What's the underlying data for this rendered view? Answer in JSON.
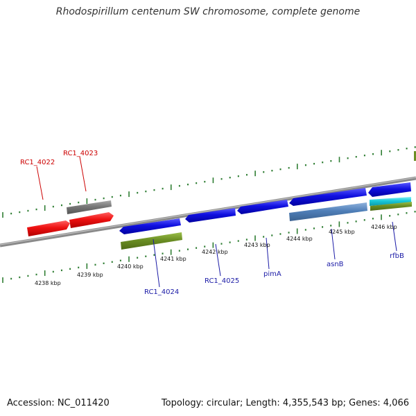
{
  "title": "Rhodospirillum centenum SW chromosome, complete genome",
  "footer": {
    "accession": "Accession: NC_011420",
    "stats": "Topology: circular; Length: 4,355,543 bp; Genes: 4,066"
  },
  "tick_labels": [
    "4238 kbp",
    "4239 kbp",
    "4240 kbp",
    "4241 kbp",
    "4242 kbp",
    "4243 kbp",
    "4244 kbp",
    "4245 kbp",
    "4246 kbp"
  ],
  "gene_labels": [
    "RC1_4022",
    "RC1_4023",
    "RC1_4024",
    "RC1_4025",
    "pimA",
    "asnB",
    "rfbB"
  ],
  "colors": {
    "forward_gene": "#ee1111",
    "reverse_gene": "#1010e0",
    "other_gene": "#777777",
    "rna_like": "#6b8e23",
    "steelblue": "#4f7fb8",
    "cyan": "#18c8d8",
    "tick": "#2e7d32",
    "backbone": "#888888"
  }
}
